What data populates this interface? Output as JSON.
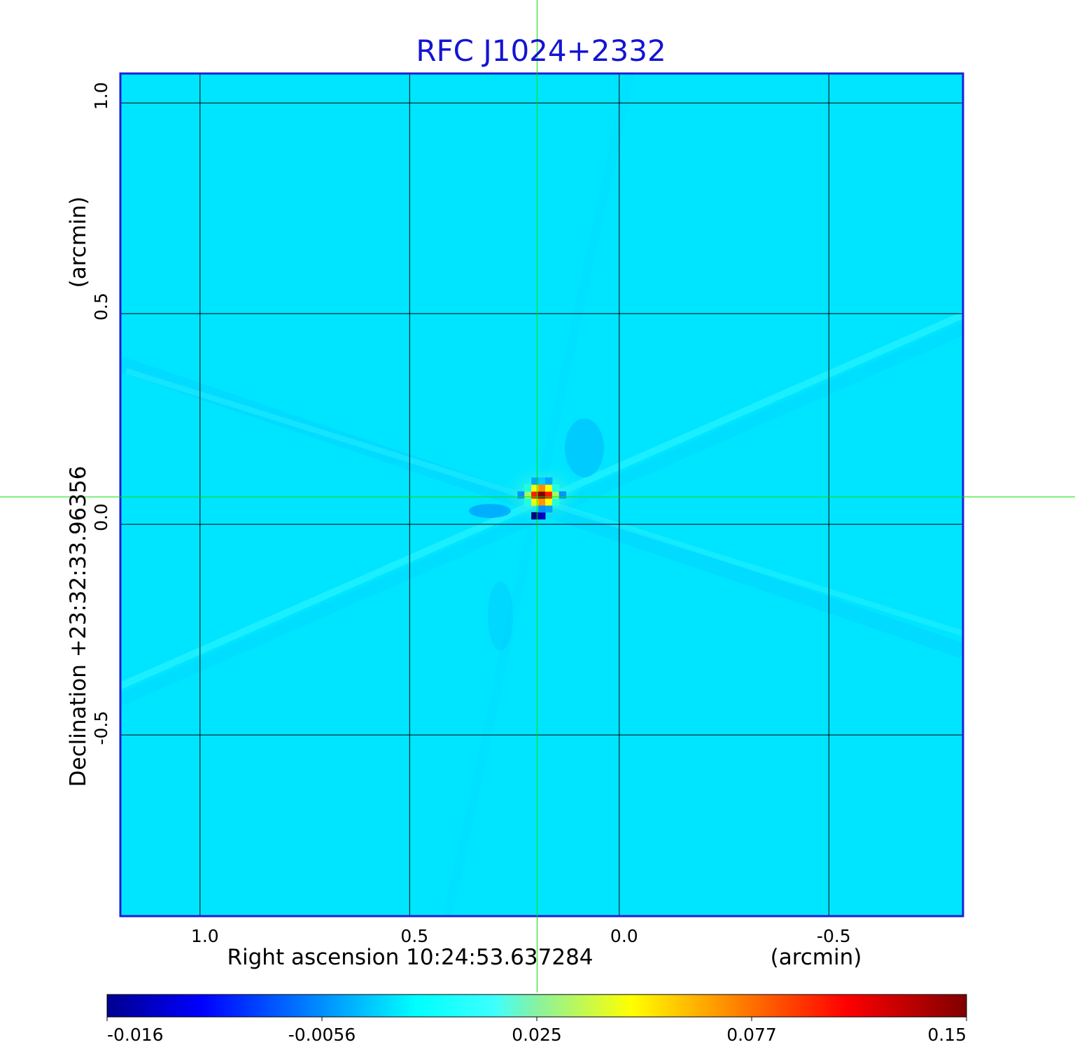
{
  "chart_data": {
    "type": "heatmap",
    "title": "RFC J1024+2332",
    "xlabel": "Right ascension  10:24:53.637284",
    "xunit": "(arcmin)",
    "ylabel": "Declination  +23:32:33.96356",
    "yunit": "(arcmin)",
    "x_ticks": [
      "1.0",
      "0.5",
      "0.0",
      "-0.5"
    ],
    "x_tick_values": [
      1.0,
      0.5,
      0.0,
      -0.5
    ],
    "y_ticks": [
      "1.0",
      "0.5",
      "0.0",
      "-0.5"
    ],
    "y_tick_values": [
      1.0,
      0.5,
      0.0,
      -0.5
    ],
    "xlim": [
      1.19,
      -0.82
    ],
    "ylim": [
      -0.93,
      1.07
    ],
    "x_axis_reversed": true,
    "grid": true,
    "grid_color": "#000000",
    "frame_color": "#1f1fd6",
    "title_color": "#1414d2",
    "colormap": "jet",
    "colorbar_ticks": [
      "-0.016",
      "-0.0056",
      "0.025",
      "0.077",
      "0.15"
    ],
    "colorbar_range": [
      -0.016,
      0.15
    ],
    "colorbar_placement": "bottom",
    "crosshair": {
      "color": "#00e000",
      "x": 0.196,
      "y": 0.065
    },
    "source": {
      "peak_x": 0.185,
      "peak_y": 0.07,
      "peak_value": 0.15,
      "negative_x": 0.197,
      "negative_y": 0.025,
      "negative_value": -0.016
    }
  }
}
